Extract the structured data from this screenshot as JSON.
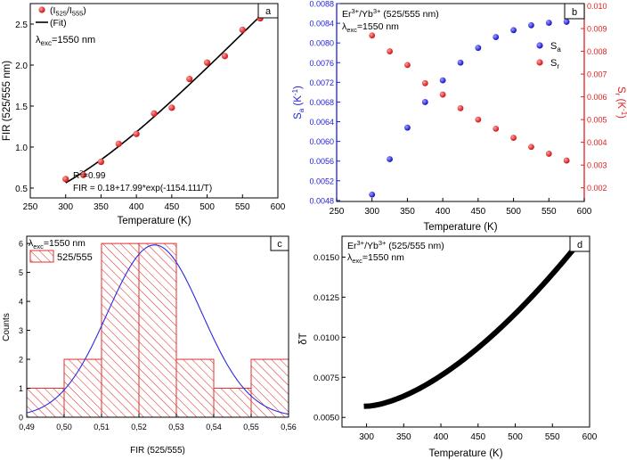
{
  "colors": {
    "axis": "#000000",
    "blue": "#1f1fd6",
    "red": "#e01f1f",
    "hist_red": "#e03030",
    "fit_blue": "#2a2ae0"
  },
  "chart_data": [
    {
      "id": "a",
      "type": "scatter",
      "panel_label": "a",
      "xlabel": "Temperature (K)",
      "ylabel": "FIR (525/555 nm)",
      "xlim": [
        250,
        600
      ],
      "ylim": [
        0.38,
        2.75
      ],
      "xticks": [
        250,
        300,
        350,
        400,
        450,
        500,
        550,
        600
      ],
      "yticks": [
        0.5,
        1.0,
        1.5,
        2.0,
        2.5
      ],
      "ytick_labels": [
        "0.5",
        "1.0",
        "1.5",
        "2.0",
        "2.5"
      ],
      "series": [
        {
          "name": "(I525/I555)",
          "legend_main": "(I",
          "legend_sub1": "525",
          "legend_sep": "/I",
          "legend_sub2": "555",
          "legend_close": ")",
          "x": [
            300,
            325,
            350,
            375,
            400,
            425,
            450,
            475,
            500,
            525,
            550,
            575
          ],
          "y": [
            0.61,
            0.66,
            0.82,
            1.04,
            1.16,
            1.41,
            1.48,
            1.83,
            2.03,
            2.11,
            2.43,
            2.57
          ]
        }
      ],
      "fit": {
        "legend": "(Fit)",
        "a": 0.18,
        "b": 17.99,
        "c": 1154.111,
        "x_range": [
          300,
          575
        ]
      },
      "annotations": {
        "lambda_main": "λ",
        "lambda_sub": "exc",
        "lambda_rest": "=1550 nm",
        "r2_main": "R",
        "r2_sup": "2",
        "r2_rest": "=0.99",
        "fir_equation": "FIR = 0.18+17.99*exp(-1154.111/T)"
      }
    },
    {
      "id": "b",
      "type": "scatter",
      "panel_label": "b",
      "title_main": "Er",
      "title_sup1": "3+",
      "title_mid": "/Yb",
      "title_sup2": "3+",
      "title_rest": " (525/555 nm)",
      "lambda_main": "λ",
      "lambda_sub": "exc",
      "lambda_rest": "=1550 nm",
      "xlabel": "Temperature (K)",
      "xlim": [
        250,
        600
      ],
      "xticks": [
        250,
        300,
        350,
        400,
        450,
        500,
        550,
        600
      ],
      "left_axis": {
        "label_main": "S",
        "label_sub": "a",
        "label_rest": " (K",
        "label_sup": "-1",
        "label_close": ")",
        "ylim": [
          0.00478,
          0.0088
        ],
        "yticks": [
          0.0048,
          0.0052,
          0.0056,
          0.006,
          0.0064,
          0.0068,
          0.0072,
          0.0076,
          0.008,
          0.0084,
          0.0088
        ],
        "ytick_labels": [
          "0.0048",
          "0.0052",
          "0.0056",
          "0.0060",
          "0.0064",
          "0.0068",
          "0.0072",
          "0.0076",
          "0.0080",
          "0.0084",
          "0.0088"
        ]
      },
      "right_axis": {
        "label_main": "S",
        "label_sub": "r",
        "label_rest": " (K",
        "label_sup": "-1",
        "label_close": ")",
        "ylim": [
          0.0014,
          0.0101
        ],
        "yticks": [
          0.002,
          0.003,
          0.004,
          0.005,
          0.006,
          0.007,
          0.008,
          0.009,
          0.01
        ],
        "ytick_labels": [
          "0.002",
          "0.003",
          "0.004",
          "0.005",
          "0.006",
          "0.007",
          "0.008",
          "0.009",
          "0.010"
        ]
      },
      "series": [
        {
          "name": "Sa",
          "legend_main": "S",
          "legend_sub": "a",
          "axis": "left",
          "x": [
            300,
            325,
            350,
            375,
            400,
            425,
            450,
            475,
            500,
            525,
            550,
            575
          ],
          "y": [
            0.00492,
            0.00564,
            0.00628,
            0.0068,
            0.00724,
            0.0076,
            0.0079,
            0.00812,
            0.00826,
            0.00836,
            0.00841,
            0.00843
          ]
        },
        {
          "name": "Sr",
          "legend_main": "S",
          "legend_sub": "r",
          "axis": "right",
          "x": [
            300,
            325,
            350,
            375,
            400,
            425,
            450,
            475,
            500,
            525,
            550,
            575
          ],
          "y": [
            0.0087,
            0.008,
            0.0074,
            0.0066,
            0.0061,
            0.0055,
            0.005,
            0.0046,
            0.0042,
            0.0038,
            0.0035,
            0.0032
          ]
        }
      ]
    },
    {
      "id": "c",
      "type": "bar",
      "panel_label": "c",
      "lambda_main": "λ",
      "lambda_sub": "exc",
      "lambda_rest": "=1550 nm",
      "legend": "525/555",
      "xlabel": "FIR (525/555)",
      "ylabel": "Counts",
      "xlim": [
        0.49,
        0.56
      ],
      "ylim": [
        0,
        6.25
      ],
      "xticks": [
        0.49,
        0.5,
        0.51,
        0.52,
        0.53,
        0.54,
        0.55,
        0.56
      ],
      "xtick_labels": [
        "0,49",
        "0,50",
        "0,51",
        "0,52",
        "0,53",
        "0,54",
        "0,55",
        "0,56"
      ],
      "yticks": [
        0,
        1,
        2,
        3,
        4,
        5,
        6
      ],
      "ytick_labels": [
        "0",
        "1",
        "2",
        "3",
        "4",
        "5",
        "6"
      ],
      "bin_edges": [
        0.49,
        0.5,
        0.51,
        0.52,
        0.53,
        0.54,
        0.55,
        0.56
      ],
      "counts": [
        1,
        2,
        6,
        6,
        2,
        1,
        2
      ],
      "gauss_fit": {
        "amplitude": 5.95,
        "mean": 0.5242,
        "sigma": 0.0126
      }
    },
    {
      "id": "d",
      "type": "line",
      "panel_label": "d",
      "title_main": "Er",
      "title_sup1": "3+",
      "title_mid": "/Yb",
      "title_sup2": "3+",
      "title_rest": " (525/555 nm)",
      "lambda_main": "λ",
      "lambda_sub": "exc",
      "lambda_rest": "=1550 nm",
      "xlabel": "Temperature (K)",
      "ylabel": "δT",
      "xlim": [
        267,
        600
      ],
      "ylim": [
        0.0044,
        0.0163
      ],
      "xticks": [
        300,
        350,
        400,
        450,
        500,
        550,
        600
      ],
      "yticks": [
        0.005,
        0.0075,
        0.01,
        0.0125,
        0.015
      ],
      "ytick_labels": [
        "0.0050",
        "0.0075",
        "0.0100",
        "0.0125",
        "0.0150"
      ],
      "curve": {
        "x_start": 300,
        "x_end": 575,
        "y_start": 0.0057,
        "y_end": 0.0153,
        "exponent": 1.6
      }
    }
  ]
}
